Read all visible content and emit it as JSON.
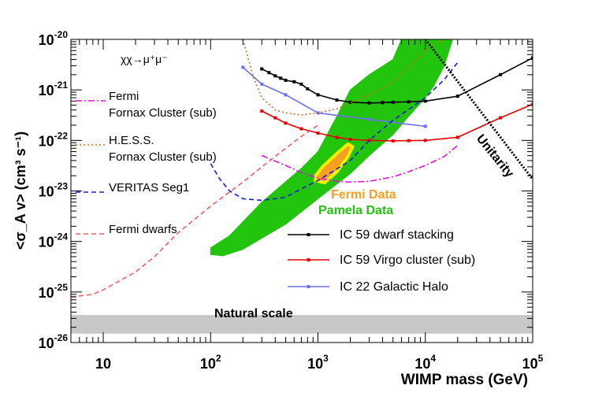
{
  "chart_data": {
    "type": "line",
    "x_scale": "log",
    "y_scale": "log",
    "xlim": [
      5,
      100000
    ],
    "ylim": [
      1e-26,
      1e-20
    ],
    "xlabel": "WIMP mass (GeV)",
    "ylabel": "<σ_A v> (cm³ s⁻¹)",
    "channel_label": "χχ→μ⁺μ⁻",
    "x_ticks": [
      {
        "value": 10,
        "base": "10",
        "exp": ""
      },
      {
        "value": 100,
        "base": "10",
        "exp": "2"
      },
      {
        "value": 1000,
        "base": "10",
        "exp": "3"
      },
      {
        "value": 10000,
        "base": "10",
        "exp": "4"
      },
      {
        "value": 100000,
        "base": "10",
        "exp": "5"
      }
    ],
    "y_ticks": [
      {
        "value": 1e-26,
        "base": "10",
        "exp": "-26"
      },
      {
        "value": 1e-25,
        "base": "10",
        "exp": "-25"
      },
      {
        "value": 1e-24,
        "base": "10",
        "exp": "-24"
      },
      {
        "value": 1e-23,
        "base": "10",
        "exp": "-23"
      },
      {
        "value": 1e-22,
        "base": "10",
        "exp": "-22"
      },
      {
        "value": 1e-21,
        "base": "10",
        "exp": "-21"
      },
      {
        "value": 1e-20,
        "base": "10",
        "exp": "-20"
      }
    ],
    "series": [
      {
        "name": "IC 59 dwarf stacking",
        "color": "#000000",
        "style": "solid",
        "markers": true,
        "points": [
          [
            300,
            2.6e-21
          ],
          [
            350,
            2.2e-21
          ],
          [
            400,
            1.9e-21
          ],
          [
            450,
            1.7e-21
          ],
          [
            500,
            1.55e-21
          ],
          [
            600,
            1.45e-21
          ],
          [
            700,
            1.3e-21
          ],
          [
            800,
            1.05e-21
          ],
          [
            1000,
            8e-22
          ],
          [
            1500,
            6.3e-22
          ],
          [
            2000,
            5.7e-22
          ],
          [
            3000,
            5.5e-22
          ],
          [
            4000,
            5.6e-22
          ],
          [
            5000,
            5.7e-22
          ],
          [
            7000,
            5.8e-22
          ],
          [
            10000,
            6e-22
          ],
          [
            20000,
            7.5e-22
          ],
          [
            50000,
            2e-21
          ],
          [
            100000,
            4.3e-21
          ]
        ]
      },
      {
        "name": "IC 59 Virgo cluster (sub)",
        "color": "#e60000",
        "style": "solid",
        "markers": true,
        "points": [
          [
            300,
            3.8e-22
          ],
          [
            400,
            2.8e-22
          ],
          [
            500,
            2.2e-22
          ],
          [
            700,
            1.7e-22
          ],
          [
            1000,
            1.4e-22
          ],
          [
            1500,
            1.15e-22
          ],
          [
            2000,
            1.05e-22
          ],
          [
            3000,
            1e-22
          ],
          [
            5000,
            9.8e-23
          ],
          [
            7000,
            9.9e-23
          ],
          [
            10000,
            1e-22
          ],
          [
            20000,
            1.15e-22
          ],
          [
            50000,
            2.8e-22
          ],
          [
            100000,
            5.2e-22
          ]
        ]
      },
      {
        "name": "IC 22 Galactic Halo",
        "color": "#6f6ff2",
        "style": "solid",
        "markers": true,
        "points": [
          [
            200,
            2.8e-21
          ],
          [
            300,
            1.3e-21
          ],
          [
            500,
            8e-22
          ],
          [
            1000,
            3.5e-22
          ],
          [
            3000,
            2.6e-22
          ],
          [
            10000,
            1.9e-22
          ]
        ]
      },
      {
        "name": "Fermi Fornax Cluster (sub)",
        "color": "#e60fe0",
        "style": "dashdot",
        "markers": false,
        "points": [
          [
            300,
            5e-23
          ],
          [
            500,
            3.2e-23
          ],
          [
            700,
            2.3e-23
          ],
          [
            1000,
            1.8e-23
          ],
          [
            1500,
            1.55e-23
          ],
          [
            2000,
            1.5e-23
          ],
          [
            3000,
            1.55e-23
          ],
          [
            5000,
            1.9e-23
          ],
          [
            7000,
            2.4e-23
          ],
          [
            10000,
            3.2e-23
          ],
          [
            15000,
            4.8e-23
          ],
          [
            20000,
            8e-23
          ]
        ]
      },
      {
        "name": "H.E.S.S. Fornax Cluster (sub)",
        "color": "#c87020",
        "style": "dotted",
        "markers": false,
        "points": [
          [
            200,
            1e-20
          ],
          [
            250,
            1.8e-21
          ],
          [
            300,
            7e-22
          ],
          [
            400,
            4e-22
          ],
          [
            500,
            3.5e-22
          ],
          [
            700,
            3.2e-22
          ],
          [
            1000,
            3.5e-22
          ],
          [
            1500,
            4.2e-22
          ],
          [
            2000,
            5.5e-22
          ],
          [
            3000,
            8e-22
          ],
          [
            5000,
            1.4e-21
          ],
          [
            7000,
            2.8e-21
          ],
          [
            10000,
            6e-21
          ],
          [
            15000,
            1e-20
          ]
        ]
      },
      {
        "name": "VERITAS Seg1",
        "color": "#1a1ad6",
        "style": "dashed",
        "markers": false,
        "points": [
          [
            100,
            3.5e-23
          ],
          [
            120,
            1.8e-23
          ],
          [
            150,
            1e-23
          ],
          [
            200,
            7e-24
          ],
          [
            300,
            6.5e-24
          ],
          [
            500,
            7.5e-24
          ],
          [
            700,
            1.1e-23
          ],
          [
            1000,
            1.6e-23
          ],
          [
            2000,
            4e-23
          ],
          [
            3000,
            1e-22
          ],
          [
            5000,
            2.5e-22
          ],
          [
            10000,
            7e-22
          ],
          [
            15000,
            1.6e-21
          ],
          [
            20000,
            3.5e-21
          ]
        ]
      },
      {
        "name": "Fermi dwarfs",
        "color": "#f06060",
        "style": "dashed",
        "markers": false,
        "points": [
          [
            5,
            8e-26
          ],
          [
            8,
            9e-26
          ],
          [
            10,
            1.1e-25
          ],
          [
            20,
            2.5e-25
          ],
          [
            30,
            5e-25
          ],
          [
            50,
            1.5e-24
          ],
          [
            100,
            5e-24
          ],
          [
            200,
            1.5e-23
          ],
          [
            300,
            3e-23
          ],
          [
            500,
            7e-23
          ],
          [
            700,
            1.2e-22
          ],
          [
            1000,
            2e-22
          ]
        ]
      },
      {
        "name": "Unitarity",
        "color": "#000000",
        "style": "thickdot",
        "markers": false,
        "points": [
          [
            10000,
            1e-20
          ],
          [
            100000,
            1.7e-23
          ]
        ]
      }
    ],
    "regions": [
      {
        "name": "Pamela Data",
        "color": "#22c40d",
        "polygon": [
          [
            100,
            5.5e-25
          ],
          [
            130,
            5.2e-25
          ],
          [
            200,
            7e-25
          ],
          [
            500,
            2.2e-24
          ],
          [
            1000,
            7e-24
          ],
          [
            2000,
            2.2e-23
          ],
          [
            3000,
            5e-23
          ],
          [
            5000,
            1.3e-22
          ],
          [
            7000,
            3e-22
          ],
          [
            10000,
            7e-22
          ],
          [
            12000,
            1.2e-21
          ],
          [
            15000,
            3e-21
          ],
          [
            18000,
            1e-20
          ],
          [
            6000,
            1e-20
          ],
          [
            5000,
            4e-21
          ],
          [
            3000,
            2e-21
          ],
          [
            2000,
            1e-21
          ],
          [
            1500,
            3e-22
          ],
          [
            1000,
            6e-23
          ],
          [
            700,
            2.8e-23
          ],
          [
            300,
            6e-24
          ],
          [
            150,
            1.3e-24
          ],
          [
            100,
            7.5e-25
          ]
        ]
      },
      {
        "name": "Fermi Data",
        "color": "#f5a020",
        "outline": "#f3f000",
        "polygon": [
          [
            950,
            1.6e-23
          ],
          [
            1150,
            1.45e-23
          ],
          [
            1500,
            2.4e-23
          ],
          [
            1900,
            4.8e-23
          ],
          [
            2100,
            7.5e-23
          ],
          [
            1900,
            8.5e-23
          ],
          [
            1500,
            5.5e-23
          ],
          [
            1100,
            3e-23
          ],
          [
            950,
            2e-23
          ]
        ]
      }
    ],
    "band": {
      "name": "Natural scale",
      "y_range": [
        1.5e-26,
        3.5e-26
      ],
      "color": "#c8c8c8"
    },
    "legend": {
      "left": [
        {
          "series": "Fermi Fornax Cluster (sub)",
          "lines": [
            "Fermi",
            "Fornax Cluster (sub)"
          ]
        },
        {
          "series": "H.E.S.S. Fornax Cluster (sub)",
          "lines": [
            "H.E.S.S.",
            "Fornax Cluster (sub)"
          ]
        },
        {
          "series": "VERITAS Seg1",
          "lines": [
            "VERITAS Seg1"
          ]
        },
        {
          "series": "Fermi dwarfs",
          "lines": [
            "Fermi dwarfs"
          ]
        }
      ],
      "right": [
        {
          "series": "IC 59 dwarf stacking",
          "label": "IC 59 dwarf stacking"
        },
        {
          "series": "IC 59 Virgo cluster (sub)",
          "label": "IC 59 Virgo cluster (sub)"
        },
        {
          "series": "IC 22 Galactic Halo",
          "label": "IC 22 Galactic Halo"
        }
      ]
    },
    "annotations": {
      "fermi_data": {
        "text": "Fermi Data",
        "color": "#f5a020"
      },
      "pamela_data": {
        "text": "Pamela Data",
        "color": "#22c40d"
      },
      "unitarity": {
        "text": "Unitarity",
        "color": "#000000"
      },
      "natural_scale": {
        "text": "Natural scale",
        "color": "#000000"
      }
    }
  }
}
